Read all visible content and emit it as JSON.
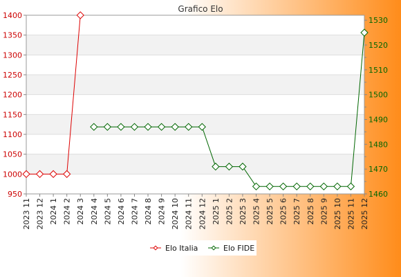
{
  "chart_data": {
    "type": "line",
    "title": "Grafico Elo",
    "categories": [
      "2023 11",
      "2023 12",
      "2024 1",
      "2024 2",
      "2024 3",
      "2024 4",
      "2024 5",
      "2024 6",
      "2024 7",
      "2024 8",
      "2024 9",
      "2024 10",
      "2024 11",
      "2024 12",
      "2025 1",
      "2025 2",
      "2025 3",
      "2025 4",
      "2025 5",
      "2025 6",
      "2025 7",
      "2025 8",
      "2025 9",
      "2025 10",
      "2025 11",
      "2025 12"
    ],
    "y_left": {
      "ylim": [
        950,
        1400
      ],
      "ticks": [
        950,
        1000,
        1050,
        1100,
        1150,
        1200,
        1250,
        1300,
        1350,
        1400
      ],
      "color": "#cc0000"
    },
    "y_right": {
      "ylim": [
        1460,
        1532
      ],
      "ticks": [
        1460,
        1470,
        1480,
        1490,
        1500,
        1510,
        1520,
        1530
      ],
      "color": "#006600"
    },
    "series": [
      {
        "name": "Elo Italia",
        "axis": "left",
        "color": "#dd0000",
        "values": [
          1000,
          1000,
          1000,
          1000,
          1400,
          null,
          null,
          null,
          null,
          null,
          null,
          null,
          null,
          null,
          null,
          null,
          null,
          null,
          null,
          null,
          null,
          null,
          null,
          null,
          null,
          null
        ]
      },
      {
        "name": "Elo FIDE",
        "axis": "right",
        "color": "#006600",
        "values": [
          null,
          null,
          null,
          null,
          null,
          1487,
          1487,
          1487,
          1487,
          1487,
          1487,
          1487,
          1487,
          1487,
          1471,
          1471,
          1471,
          1463,
          1463,
          1463,
          1463,
          1463,
          1463,
          1463,
          1463,
          1525
        ]
      }
    ],
    "grid": true,
    "legend": "bottom-center",
    "colors": {
      "background_from": "#ffffff",
      "background_to": "#ff8c1a",
      "band": "#f2f2f2",
      "plot": "#ffffff"
    }
  }
}
